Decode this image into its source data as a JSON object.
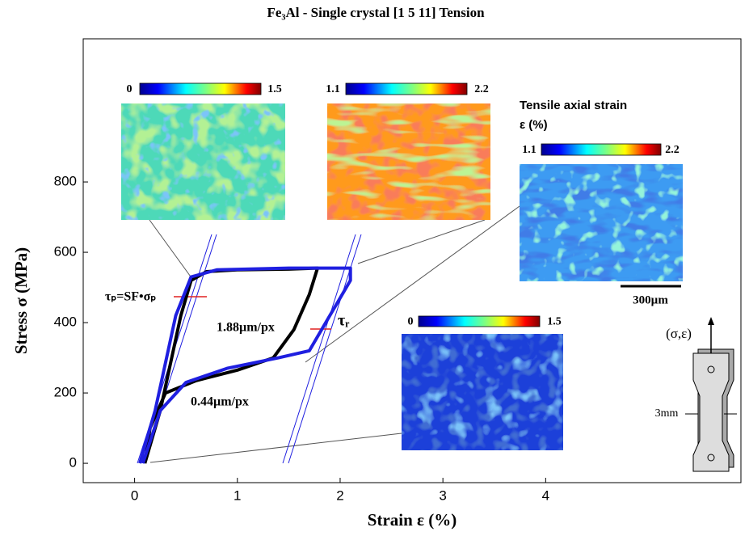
{
  "chart_data": {
    "type": "line",
    "title": "Fe₃Al - Single crystal [1 5 11] Tension",
    "xlabel": "Strain ε (%)",
    "ylabel": "Stress σ (MPa)",
    "xlim": [
      -0.5,
      5.9
    ],
    "ylim": [
      -55,
      1207
    ],
    "xticks": [
      0,
      1,
      2,
      3,
      4
    ],
    "yticks": [
      0,
      200,
      400,
      600,
      800
    ],
    "series": [
      {
        "name": "1.88µm/px",
        "color": "#000000",
        "x": [
          0.1,
          0.25,
          0.45,
          0.55,
          0.7,
          1.0,
          1.5,
          1.78,
          1.7,
          1.55,
          1.35,
          1.0,
          0.6,
          0.3,
          0.15,
          0.1
        ],
        "y": [
          0,
          150,
          420,
          520,
          545,
          550,
          552,
          555,
          480,
          380,
          300,
          265,
          235,
          200,
          100,
          0
        ]
      },
      {
        "name": "0.44µm/px",
        "color": "#1f1fe0",
        "x": [
          0.05,
          0.2,
          0.4,
          0.55,
          0.8,
          1.5,
          2.1,
          2.1,
          1.9,
          1.7,
          1.4,
          0.9,
          0.5,
          0.25,
          0.08
        ],
        "y": [
          0,
          150,
          420,
          530,
          550,
          555,
          555,
          520,
          420,
          320,
          300,
          270,
          230,
          150,
          0
        ]
      }
    ],
    "annotations": [
      "τₚ=SF•σₚ",
      "τᵣ"
    ],
    "insets": [
      {
        "cbar": [
          0,
          1.5
        ]
      },
      {
        "cbar": [
          1.1,
          2.2
        ]
      },
      {
        "title": "Tensile axial strain",
        "subtitle": "ε (%)",
        "cbar": [
          1.1,
          2.2
        ],
        "scale_bar": "300µm"
      },
      {
        "cbar": [
          0,
          1.5
        ]
      }
    ],
    "specimen": {
      "load_label": "(σ,ε)",
      "width_label": "3mm"
    }
  }
}
